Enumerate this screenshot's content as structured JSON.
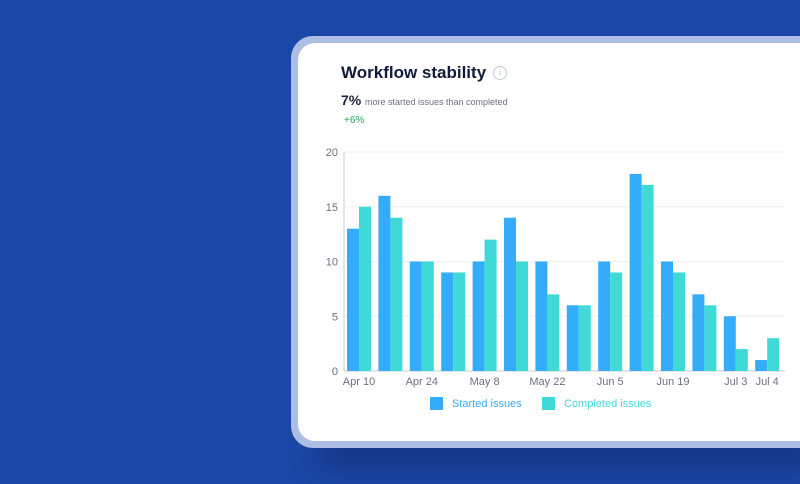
{
  "card": {
    "title": "Workflow stability",
    "info_icon": "info-icon",
    "headline_value": "7%",
    "headline_text": "more started issues than completed",
    "delta": "+6%"
  },
  "colors": {
    "background": "#1b47a6",
    "started": "#35acfa",
    "completed": "#3fdad8",
    "delta": "#2aa55b"
  },
  "chart_data": {
    "type": "bar",
    "title": "",
    "xlabel": "",
    "ylabel": "",
    "ylim": [
      0,
      20
    ],
    "yticks": [
      0,
      5,
      10,
      15,
      20
    ],
    "grid": true,
    "legend_placement": "bottom",
    "categories": [
      "Apr 10",
      "",
      "Apr 24",
      "",
      "May 8",
      "",
      "May 22",
      "",
      "Jun 5",
      "",
      "Jun 19",
      "",
      "Jul 3",
      "Jul 4"
    ],
    "series": [
      {
        "name": "Started issues",
        "color": "#35acfa",
        "values": [
          13,
          16,
          10,
          9,
          10,
          14,
          10,
          6,
          10,
          18,
          10,
          7,
          5,
          1
        ]
      },
      {
        "name": "Completed issues",
        "color": "#3fdad8",
        "values": [
          15,
          14,
          10,
          9,
          12,
          10,
          7,
          6,
          9,
          17,
          9,
          6,
          2,
          3
        ]
      }
    ]
  }
}
